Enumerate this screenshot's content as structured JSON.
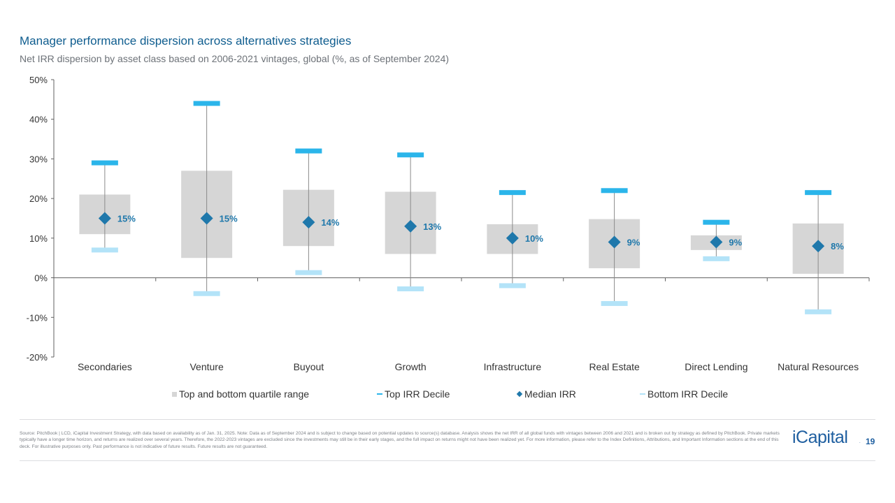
{
  "title": "Manager performance dispersion across alternatives strategies",
  "subtitle": "Net IRR dispersion by asset class based on 2006-2021 vintages, global (%, as of September 2024)",
  "chart_data": {
    "type": "box-range",
    "title": "Manager performance dispersion across alternatives strategies",
    "subtitle": "Net IRR dispersion by asset class based on 2006-2021 vintages, global (%, as of September 2024)",
    "ylim": [
      -20,
      50
    ],
    "yticks": [
      -20,
      -10,
      0,
      10,
      20,
      30,
      40,
      50
    ],
    "ytick_labels": [
      "-20%",
      "-10%",
      "0%",
      "10%",
      "20%",
      "30%",
      "40%",
      "50%"
    ],
    "categories": [
      "Secondaries",
      "Venture",
      "Buyout",
      "Growth",
      "Infrastructure",
      "Real Estate",
      "Direct Lending",
      "Natural Resources"
    ],
    "series": [
      {
        "name": "Top IRR Decile",
        "values": [
          29,
          44,
          32,
          31,
          21.5,
          22,
          14,
          21.5
        ]
      },
      {
        "name": "Top quartile",
        "values": [
          21,
          27,
          22.2,
          21.7,
          13.5,
          14.8,
          10.7,
          13.7
        ]
      },
      {
        "name": "Median IRR",
        "values": [
          15,
          15,
          14,
          13,
          10,
          9,
          9,
          8
        ]
      },
      {
        "name": "Bottom quartile",
        "values": [
          11,
          5,
          8,
          6,
          6,
          2.4,
          7,
          1
        ]
      },
      {
        "name": "Bottom IRR Decile",
        "values": [
          7,
          -4,
          1.3,
          -2.8,
          -2,
          -6.5,
          4.8,
          -8.6
        ]
      }
    ],
    "median_labels": [
      "15%",
      "15%",
      "14%",
      "13%",
      "10%",
      "9%",
      "9%",
      "8%"
    ],
    "colors": {
      "box": "#d6d6d6",
      "top": "#2bb5ea",
      "bottom": "#b3e3f8",
      "median": "#1f78ab",
      "whisker": "#8a8a8a",
      "axis": "#606060",
      "label": "#1f78ab"
    }
  },
  "legend": {
    "quartile": "Top and bottom quartile range",
    "top_decile": "Top IRR Decile",
    "median": "Median IRR",
    "bottom_decile": "Bottom IRR Decile"
  },
  "footnote": "Source: PitchBook | LCD, iCapital Investment Strategy, with data based on availability as of Jan. 31, 2025. Note: Data as of September 2024 and is subject to change based on potential updates to source(s) database. Analysis shows the net IRR of all global funds with vintages between 2006 and 2021 and is broken out by strategy as defined by PitchBook. Private markets typically have a longer time horizon, and returns are realized over several years. Therefore, the 2022-2023 vintages are excluded since the investments may still be in their early stages, and the full impact on returns might not have been realized yet. For more information, please refer to the Index Definitions, Attributions, and Important Information sections at the end of this deck. For illustrative purposes only. Past performance is not indicative of future results. Future results are not guaranteed.",
  "logo": "iCapital",
  "logo_mark": ".",
  "page_number": "19"
}
